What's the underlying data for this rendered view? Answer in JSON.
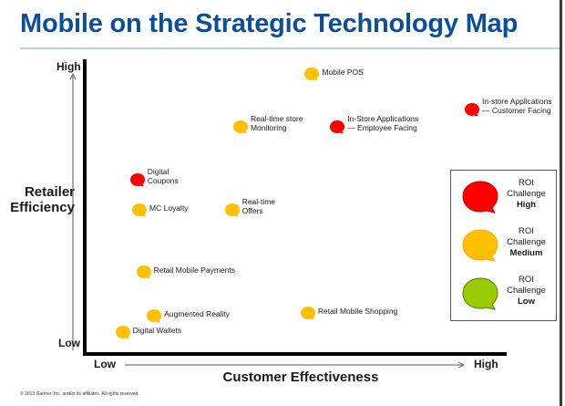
{
  "header": {
    "title": "Mobile on the Strategic Technology Map"
  },
  "footer": {
    "copyright": "© 2013 Gartner, Inc. and/or its affiliates. All rights reserved."
  },
  "colors": {
    "title": "#0b4f9c",
    "high": "#ff0000",
    "medium": "#ffc000",
    "low": "#99cc00"
  },
  "chart_data": {
    "type": "scatter",
    "title": "Mobile on the Strategic Technology Map",
    "xlabel": "Customer Effectiveness",
    "ylabel": "Retailer Efficiency",
    "x_tick_labels": {
      "low": "Low",
      "high": "High"
    },
    "y_tick_labels": {
      "low": "Low",
      "high": "High"
    },
    "xlim": [
      0,
      100
    ],
    "ylim": [
      0,
      100
    ],
    "grid": false,
    "legend_position": "right",
    "legend": [
      {
        "key": "high",
        "line1": "ROI",
        "line2": "Challenge",
        "level": "High"
      },
      {
        "key": "medium",
        "line1": "ROI",
        "line2": "Challenge",
        "level": "Medium"
      },
      {
        "key": "low",
        "line1": "ROI",
        "line2": "Challenge",
        "level": "Low"
      }
    ],
    "points": [
      {
        "label": [
          "Mobile POS"
        ],
        "x": 54,
        "y": 95,
        "roi": "medium"
      },
      {
        "label": [
          "Real-time store",
          "Monitoring"
        ],
        "x": 37,
        "y": 77,
        "roi": "medium"
      },
      {
        "label": [
          "In-Store Applications",
          "— Employee Facing"
        ],
        "x": 60,
        "y": 77,
        "roi": "high"
      },
      {
        "label": [
          "In-store Applications",
          "— Customer Facing"
        ],
        "x": 92,
        "y": 83,
        "roi": "high"
      },
      {
        "label": [
          "Digital",
          "Coupons"
        ],
        "x": 12.5,
        "y": 59,
        "roi": "high"
      },
      {
        "label": [
          "MC Loyalty"
        ],
        "x": 13,
        "y": 49,
        "roi": "medium"
      },
      {
        "label": [
          "Real-time",
          "Offers"
        ],
        "x": 35,
        "y": 49,
        "roi": "medium"
      },
      {
        "label": [
          "Retail Mobile Payments"
        ],
        "x": 14,
        "y": 28,
        "roi": "medium"
      },
      {
        "label": [
          "Augmented Reality"
        ],
        "x": 16.5,
        "y": 13,
        "roi": "medium"
      },
      {
        "label": [
          "Retail Mobile Shopping"
        ],
        "x": 53,
        "y": 14,
        "roi": "medium"
      },
      {
        "label": [
          "Digital Wallets"
        ],
        "x": 9,
        "y": 7.5,
        "roi": "medium"
      }
    ]
  }
}
